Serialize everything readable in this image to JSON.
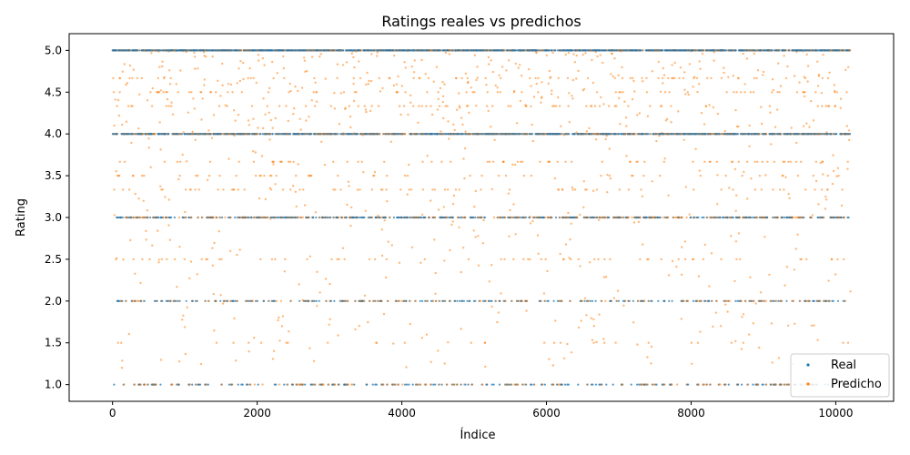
{
  "chart_data": {
    "type": "scatter",
    "title": "Ratings reales vs predichos",
    "xlabel": "Índice",
    "ylabel": "Rating",
    "xlim": [
      -600,
      10800
    ],
    "ylim": [
      0.8,
      5.2
    ],
    "x_ticks": [
      0,
      2000,
      4000,
      6000,
      8000,
      10000
    ],
    "y_ticks": [
      1.0,
      1.5,
      2.0,
      2.5,
      3.0,
      3.5,
      4.0,
      4.5,
      5.0
    ],
    "x_tick_labels": [
      "0",
      "2000",
      "4000",
      "6000",
      "8000",
      "10000"
    ],
    "y_tick_labels": [
      "1.0",
      "1.5",
      "2.0",
      "2.5",
      "3.0",
      "3.5",
      "4.0",
      "4.5",
      "5.0"
    ],
    "grid": false,
    "legend_position": "lower right",
    "n_points": 10200,
    "series": [
      {
        "name": "Real",
        "color": "#1f77b4",
        "marker": "point",
        "distribution": [
          {
            "y": 5.0,
            "share": 0.4
          },
          {
            "y": 4.0,
            "share": 0.3
          },
          {
            "y": 3.0,
            "share": 0.15
          },
          {
            "y": 2.0,
            "share": 0.08
          },
          {
            "y": 1.0,
            "share": 0.07
          }
        ]
      },
      {
        "name": "Predicho",
        "color": "#ff7f0e",
        "marker": "point",
        "discrete_levels": [
          1.0,
          1.5,
          2.0,
          2.5,
          3.0,
          3.333,
          3.5,
          3.667,
          4.0,
          4.333,
          4.5,
          4.667,
          5.0
        ],
        "continuous_range": [
          1.2,
          5.0
        ]
      }
    ]
  }
}
